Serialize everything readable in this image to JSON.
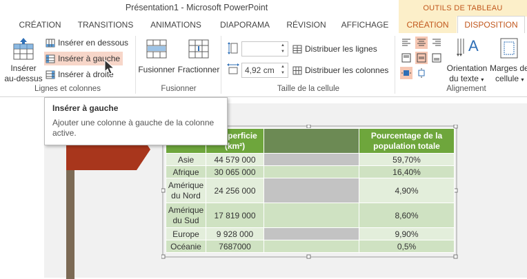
{
  "window": {
    "title": "Présentation1 - Microsoft PowerPoint",
    "tools_label": "OUTILS DE TABLEAU"
  },
  "tabs": [
    {
      "label": "CRÉATION"
    },
    {
      "label": "TRANSITIONS"
    },
    {
      "label": "ANIMATIONS"
    },
    {
      "label": "DIAPORAMA"
    },
    {
      "label": "RÉVISION"
    },
    {
      "label": "AFFICHAGE"
    },
    {
      "label": "CRÉATION"
    },
    {
      "label": "DISPOSITION"
    }
  ],
  "ribbon": {
    "rows_cols": {
      "insert_above": "Insérer au-dessus",
      "insert_above_l1": "Insérer",
      "insert_above_l2": "au-dessus",
      "insert_below": "Insérer en dessous",
      "insert_left": "Insérer à gauche",
      "insert_right": "Insérer à droite",
      "group": "Lignes et colonnes"
    },
    "merge": {
      "merge": "Fusionner",
      "split": "Fractionner",
      "group": "Fusionner"
    },
    "cell_size": {
      "height_value": "",
      "width_value": "4,92 cm",
      "distribute_rows": "Distribuer les lignes",
      "distribute_cols": "Distribuer les colonnes",
      "group": "Taille de la cellule"
    },
    "alignment": {
      "text_direction_l1": "Orientation",
      "text_direction_l2": "du texte",
      "cell_margins_l1": "Marges de",
      "cell_margins_l2": "cellule",
      "group": "Alignement"
    }
  },
  "tooltip": {
    "title": "Insérer à gauche",
    "description": "Ajouter une colonne à gauche de la colonne active."
  },
  "table": {
    "headers": [
      "",
      "Superficie (km²)",
      "",
      "Pourcentage de la population totale"
    ],
    "header_visible": [
      "",
      "perficie",
      "(km²)",
      "",
      "Pourcentage de la",
      "population totale"
    ],
    "rows": [
      {
        "continent": "Asie",
        "area": "44 579 000",
        "pct": "59,70%"
      },
      {
        "continent": "Afrique",
        "area": "30 065 000",
        "pct": "16,40%"
      },
      {
        "continent": "Amérique du Nord",
        "c1": "Amérique",
        "c2": "du Nord",
        "area": "24 256 000",
        "pct": "4,90%"
      },
      {
        "continent": "Amérique du Sud",
        "c1": "Amérique",
        "c2": "du Sud",
        "area": "17 819 000",
        "pct": "8,60%"
      },
      {
        "continent": "Europe",
        "area": "9 928 000",
        "pct": "9,90%"
      },
      {
        "continent": "Océanie",
        "area": "7687000",
        "pct": "0,5%"
      }
    ]
  },
  "colors": {
    "accent": "#c1571c",
    "header_green": "#6ea63c",
    "row_light": "#e3eedb",
    "row_alt": "#cfe2c2",
    "selected_col": "#c3c3c3",
    "arrow_red": "#a8361c"
  }
}
